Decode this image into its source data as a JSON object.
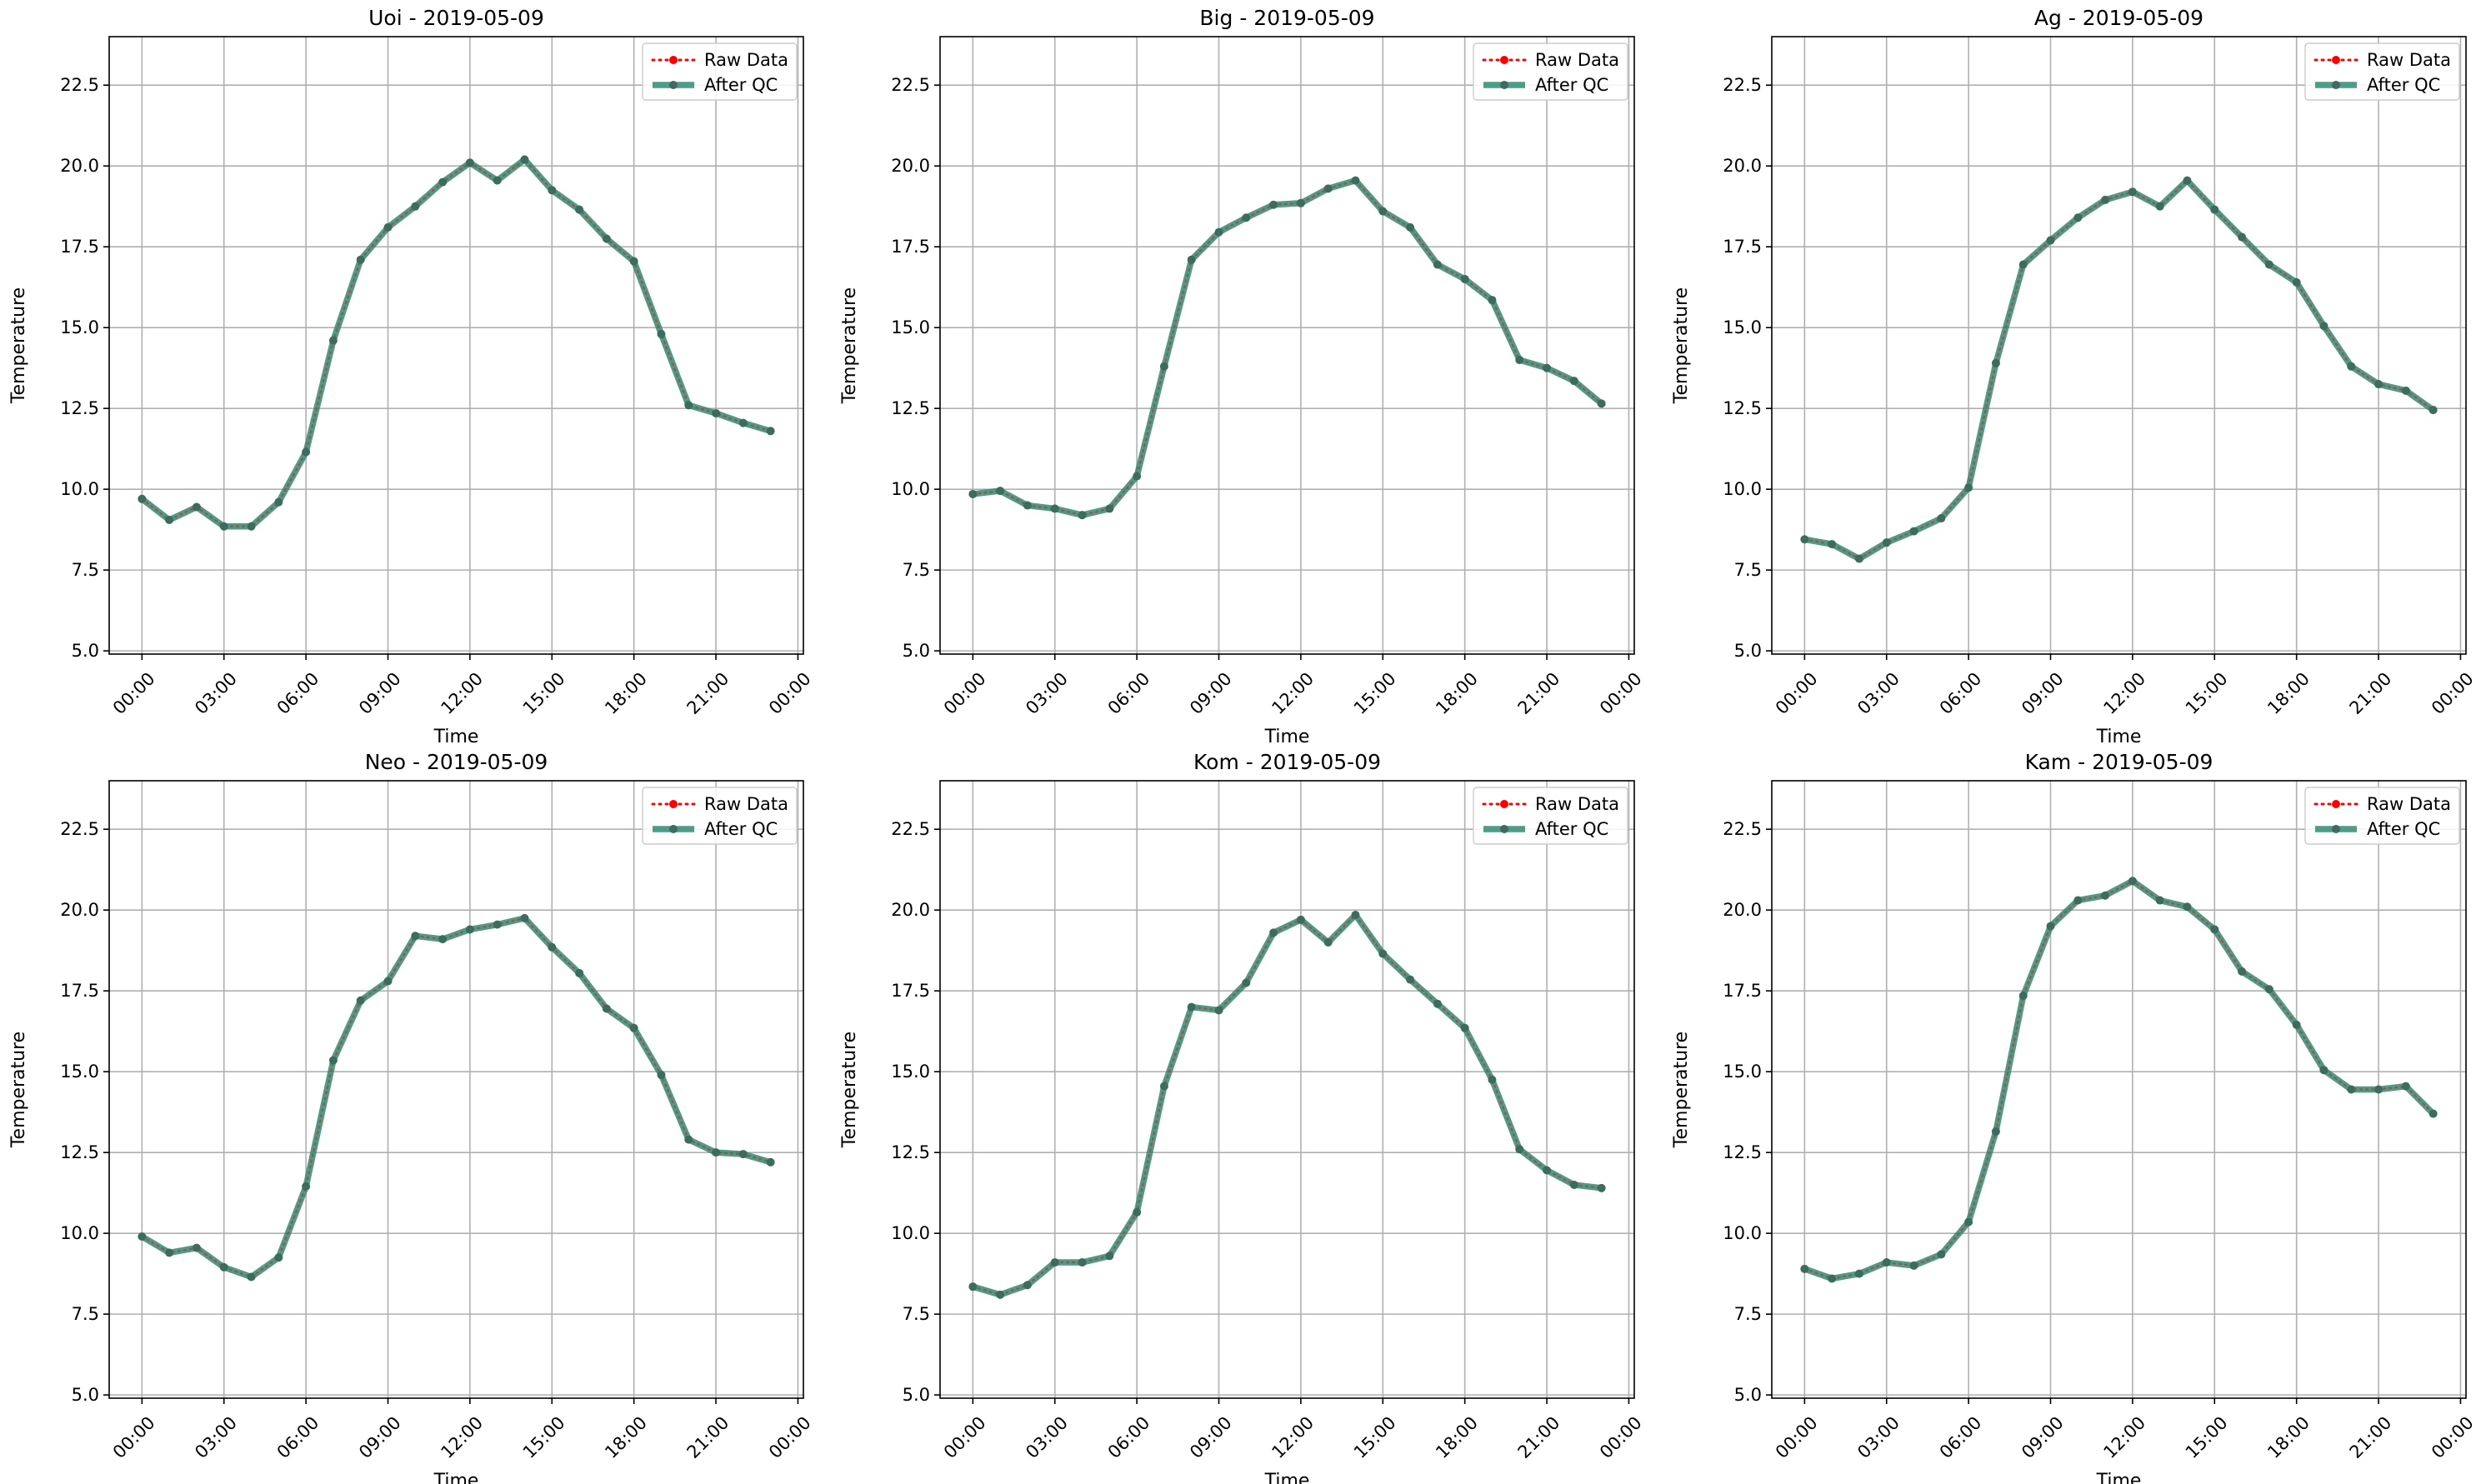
{
  "figure": {
    "background": "#ffffff"
  },
  "style": {
    "raw_color": "#ff0000",
    "qc_color": "#2e8b72",
    "marker_color": "#3d6b5e",
    "grid_color": "#b0b0b0"
  },
  "chart_data": [
    {
      "type": "line",
      "title": "Uoi - 2019-05-09",
      "xlabel": "Time",
      "ylabel": "Temperature",
      "x": [
        0,
        1,
        2,
        3,
        4,
        5,
        6,
        7,
        8,
        9,
        10,
        11,
        12,
        13,
        14,
        15,
        16,
        17,
        18,
        19,
        20,
        21,
        22,
        23
      ],
      "xlim": [
        -1.2,
        24.2
      ],
      "ylim": [
        4.9,
        24.0
      ],
      "xticks": [
        0,
        3,
        6,
        9,
        12,
        15,
        18,
        21,
        24
      ],
      "xtick_labels": [
        "00:00",
        "03:00",
        "06:00",
        "09:00",
        "12:00",
        "15:00",
        "18:00",
        "21:00",
        "00:00"
      ],
      "yticks": [
        5.0,
        7.5,
        10.0,
        12.5,
        15.0,
        17.5,
        20.0,
        22.5
      ],
      "ytick_labels": [
        "5.0",
        "7.5",
        "10.0",
        "12.5",
        "15.0",
        "17.5",
        "20.0",
        "22.5"
      ],
      "grid": true,
      "legend_position": "top-right",
      "series": [
        {
          "name": "Raw Data",
          "values": [
            9.7,
            9.05,
            9.45,
            8.85,
            8.85,
            9.6,
            11.15,
            14.6,
            17.1,
            18.1,
            18.75,
            19.5,
            20.1,
            19.55,
            20.2,
            19.25,
            18.65,
            17.75,
            17.05,
            14.8,
            12.6,
            12.35,
            12.05,
            11.8
          ]
        },
        {
          "name": "After QC",
          "values": [
            9.7,
            9.05,
            9.45,
            8.85,
            8.85,
            9.6,
            11.15,
            14.6,
            17.1,
            18.1,
            18.75,
            19.5,
            20.1,
            19.55,
            20.2,
            19.25,
            18.65,
            17.75,
            17.05,
            14.8,
            12.6,
            12.35,
            12.05,
            11.8
          ]
        }
      ]
    },
    {
      "type": "line",
      "title": "Big - 2019-05-09",
      "xlabel": "Time",
      "ylabel": "Temperature",
      "x": [
        0,
        1,
        2,
        3,
        4,
        5,
        6,
        7,
        8,
        9,
        10,
        11,
        12,
        13,
        14,
        15,
        16,
        17,
        18,
        19,
        20,
        21,
        22,
        23
      ],
      "xlim": [
        -1.2,
        24.2
      ],
      "ylim": [
        4.9,
        24.0
      ],
      "xticks": [
        0,
        3,
        6,
        9,
        12,
        15,
        18,
        21,
        24
      ],
      "xtick_labels": [
        "00:00",
        "03:00",
        "06:00",
        "09:00",
        "12:00",
        "15:00",
        "18:00",
        "21:00",
        "00:00"
      ],
      "yticks": [
        5.0,
        7.5,
        10.0,
        12.5,
        15.0,
        17.5,
        20.0,
        22.5
      ],
      "ytick_labels": [
        "5.0",
        "7.5",
        "10.0",
        "12.5",
        "15.0",
        "17.5",
        "20.0",
        "22.5"
      ],
      "grid": true,
      "legend_position": "top-right",
      "series": [
        {
          "name": "Raw Data",
          "values": [
            9.85,
            9.95,
            9.5,
            9.4,
            9.2,
            9.4,
            10.4,
            13.8,
            17.1,
            17.95,
            18.4,
            18.8,
            18.85,
            19.3,
            19.55,
            18.6,
            18.1,
            16.95,
            16.5,
            15.85,
            14.0,
            13.75,
            13.35,
            12.65
          ]
        },
        {
          "name": "After QC",
          "values": [
            9.85,
            9.95,
            9.5,
            9.4,
            9.2,
            9.4,
            10.4,
            13.8,
            17.1,
            17.95,
            18.4,
            18.8,
            18.85,
            19.3,
            19.55,
            18.6,
            18.1,
            16.95,
            16.5,
            15.85,
            14.0,
            13.75,
            13.35,
            12.65
          ]
        }
      ]
    },
    {
      "type": "line",
      "title": "Ag - 2019-05-09",
      "xlabel": "Time",
      "ylabel": "Temperature",
      "x": [
        0,
        1,
        2,
        3,
        4,
        5,
        6,
        7,
        8,
        9,
        10,
        11,
        12,
        13,
        14,
        15,
        16,
        17,
        18,
        19,
        20,
        21,
        22,
        23
      ],
      "xlim": [
        -1.2,
        24.2
      ],
      "ylim": [
        4.9,
        24.0
      ],
      "xticks": [
        0,
        3,
        6,
        9,
        12,
        15,
        18,
        21,
        24
      ],
      "xtick_labels": [
        "00:00",
        "03:00",
        "06:00",
        "09:00",
        "12:00",
        "15:00",
        "18:00",
        "21:00",
        "00:00"
      ],
      "yticks": [
        5.0,
        7.5,
        10.0,
        12.5,
        15.0,
        17.5,
        20.0,
        22.5
      ],
      "ytick_labels": [
        "5.0",
        "7.5",
        "10.0",
        "12.5",
        "15.0",
        "17.5",
        "20.0",
        "22.5"
      ],
      "grid": true,
      "legend_position": "top-right",
      "series": [
        {
          "name": "Raw Data",
          "values": [
            8.45,
            8.3,
            7.85,
            8.35,
            8.7,
            9.1,
            10.05,
            13.9,
            16.95,
            17.7,
            18.4,
            18.95,
            19.2,
            18.75,
            19.55,
            18.65,
            17.8,
            16.95,
            16.4,
            15.05,
            13.8,
            13.25,
            13.05,
            12.45
          ]
        },
        {
          "name": "After QC",
          "values": [
            8.45,
            8.3,
            7.85,
            8.35,
            8.7,
            9.1,
            10.05,
            13.9,
            16.95,
            17.7,
            18.4,
            18.95,
            19.2,
            18.75,
            19.55,
            18.65,
            17.8,
            16.95,
            16.4,
            15.05,
            13.8,
            13.25,
            13.05,
            12.45
          ]
        }
      ]
    },
    {
      "type": "line",
      "title": "Neo - 2019-05-09",
      "xlabel": "Time",
      "ylabel": "Temperature",
      "x": [
        0,
        1,
        2,
        3,
        4,
        5,
        6,
        7,
        8,
        9,
        10,
        11,
        12,
        13,
        14,
        15,
        16,
        17,
        18,
        19,
        20,
        21,
        22,
        23
      ],
      "xlim": [
        -1.2,
        24.2
      ],
      "ylim": [
        4.9,
        24.0
      ],
      "xticks": [
        0,
        3,
        6,
        9,
        12,
        15,
        18,
        21,
        24
      ],
      "xtick_labels": [
        "00:00",
        "03:00",
        "06:00",
        "09:00",
        "12:00",
        "15:00",
        "18:00",
        "21:00",
        "00:00"
      ],
      "yticks": [
        5.0,
        7.5,
        10.0,
        12.5,
        15.0,
        17.5,
        20.0,
        22.5
      ],
      "ytick_labels": [
        "5.0",
        "7.5",
        "10.0",
        "12.5",
        "15.0",
        "17.5",
        "20.0",
        "22.5"
      ],
      "grid": true,
      "legend_position": "top-right",
      "series": [
        {
          "name": "Raw Data",
          "values": [
            9.9,
            9.4,
            9.55,
            8.95,
            8.65,
            9.25,
            11.45,
            15.35,
            17.2,
            17.8,
            19.2,
            19.1,
            19.4,
            19.55,
            19.75,
            18.85,
            18.05,
            16.95,
            16.35,
            14.9,
            12.9,
            12.5,
            12.45,
            12.2
          ]
        },
        {
          "name": "After QC",
          "values": [
            9.9,
            9.4,
            9.55,
            8.95,
            8.65,
            9.25,
            11.45,
            15.35,
            17.2,
            17.8,
            19.2,
            19.1,
            19.4,
            19.55,
            19.75,
            18.85,
            18.05,
            16.95,
            16.35,
            14.9,
            12.9,
            12.5,
            12.45,
            12.2
          ]
        }
      ]
    },
    {
      "type": "line",
      "title": "Kom - 2019-05-09",
      "xlabel": "Time",
      "ylabel": "Temperature",
      "x": [
        0,
        1,
        2,
        3,
        4,
        5,
        6,
        7,
        8,
        9,
        10,
        11,
        12,
        13,
        14,
        15,
        16,
        17,
        18,
        19,
        20,
        21,
        22,
        23
      ],
      "xlim": [
        -1.2,
        24.2
      ],
      "ylim": [
        4.9,
        24.0
      ],
      "xticks": [
        0,
        3,
        6,
        9,
        12,
        15,
        18,
        21,
        24
      ],
      "xtick_labels": [
        "00:00",
        "03:00",
        "06:00",
        "09:00",
        "12:00",
        "15:00",
        "18:00",
        "21:00",
        "00:00"
      ],
      "yticks": [
        5.0,
        7.5,
        10.0,
        12.5,
        15.0,
        17.5,
        20.0,
        22.5
      ],
      "ytick_labels": [
        "5.0",
        "7.5",
        "10.0",
        "12.5",
        "15.0",
        "17.5",
        "20.0",
        "22.5"
      ],
      "grid": true,
      "legend_position": "top-right",
      "series": [
        {
          "name": "Raw Data",
          "values": [
            8.35,
            8.1,
            8.4,
            9.1,
            9.1,
            9.3,
            10.65,
            14.55,
            17.0,
            16.9,
            17.75,
            19.3,
            19.7,
            19.0,
            19.85,
            18.65,
            17.85,
            17.1,
            16.35,
            14.75,
            12.6,
            11.95,
            11.5,
            11.4
          ]
        },
        {
          "name": "After QC",
          "values": [
            8.35,
            8.1,
            8.4,
            9.1,
            9.1,
            9.3,
            10.65,
            14.55,
            17.0,
            16.9,
            17.75,
            19.3,
            19.7,
            19.0,
            19.85,
            18.65,
            17.85,
            17.1,
            16.35,
            14.75,
            12.6,
            11.95,
            11.5,
            11.4
          ]
        }
      ]
    },
    {
      "type": "line",
      "title": "Kam - 2019-05-09",
      "xlabel": "Time",
      "ylabel": "Temperature",
      "x": [
        0,
        1,
        2,
        3,
        4,
        5,
        6,
        7,
        8,
        9,
        10,
        11,
        12,
        13,
        14,
        15,
        16,
        17,
        18,
        19,
        20,
        21,
        22,
        23
      ],
      "xlim": [
        -1.2,
        24.2
      ],
      "ylim": [
        4.9,
        24.0
      ],
      "xticks": [
        0,
        3,
        6,
        9,
        12,
        15,
        18,
        21,
        24
      ],
      "xtick_labels": [
        "00:00",
        "03:00",
        "06:00",
        "09:00",
        "12:00",
        "15:00",
        "18:00",
        "21:00",
        "00:00"
      ],
      "yticks": [
        5.0,
        7.5,
        10.0,
        12.5,
        15.0,
        17.5,
        20.0,
        22.5
      ],
      "ytick_labels": [
        "5.0",
        "7.5",
        "10.0",
        "12.5",
        "15.0",
        "17.5",
        "20.0",
        "22.5"
      ],
      "grid": true,
      "legend_position": "top-right",
      "series": [
        {
          "name": "Raw Data",
          "values": [
            8.9,
            8.6,
            8.75,
            9.1,
            9.0,
            9.35,
            10.35,
            13.15,
            17.35,
            19.5,
            20.3,
            20.45,
            20.9,
            20.3,
            20.1,
            19.4,
            18.1,
            17.55,
            16.45,
            15.05,
            14.45,
            14.45,
            14.55,
            13.7
          ]
        },
        {
          "name": "After QC",
          "values": [
            8.9,
            8.6,
            8.75,
            9.1,
            9.0,
            9.35,
            10.35,
            13.15,
            17.35,
            19.5,
            20.3,
            20.45,
            20.9,
            20.3,
            20.1,
            19.4,
            18.1,
            17.55,
            16.45,
            15.05,
            14.45,
            14.45,
            14.55,
            13.7
          ]
        }
      ]
    }
  ]
}
